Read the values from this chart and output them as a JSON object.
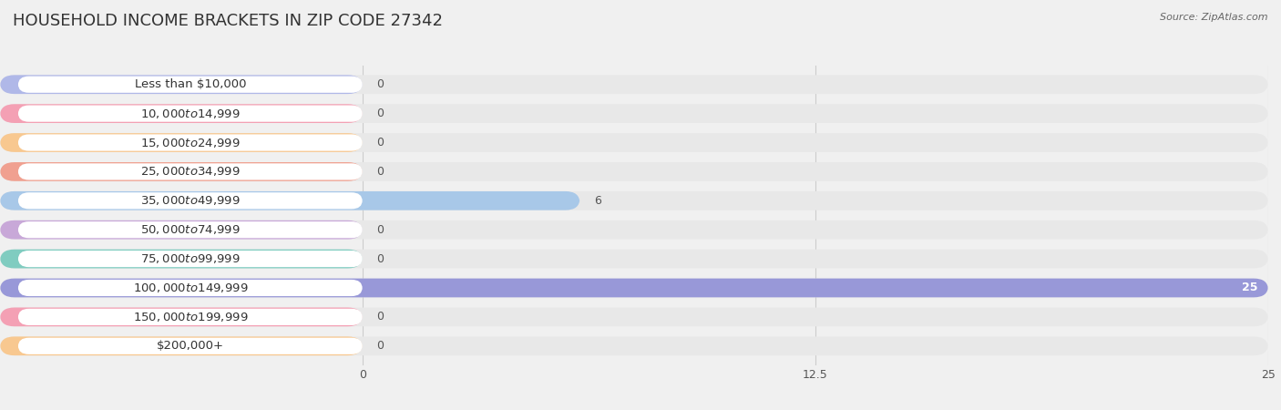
{
  "title": "HOUSEHOLD INCOME BRACKETS IN ZIP CODE 27342",
  "source": "Source: ZipAtlas.com",
  "categories": [
    "Less than $10,000",
    "$10,000 to $14,999",
    "$15,000 to $24,999",
    "$25,000 to $34,999",
    "$35,000 to $49,999",
    "$50,000 to $74,999",
    "$75,000 to $99,999",
    "$100,000 to $149,999",
    "$150,000 to $199,999",
    "$200,000+"
  ],
  "values": [
    0,
    0,
    0,
    0,
    6,
    0,
    0,
    25,
    0,
    0
  ],
  "bar_colors": [
    "#b0b8e8",
    "#f4a0b4",
    "#f8c890",
    "#f0a090",
    "#a8c8e8",
    "#c8a8d8",
    "#80ccc0",
    "#9898d8",
    "#f4a0b4",
    "#f8c890"
  ],
  "label_colors": [
    "#444444",
    "#444444",
    "#444444",
    "#444444",
    "#444444",
    "#444444",
    "#444444",
    "#ffffff",
    "#444444",
    "#444444"
  ],
  "xlim": [
    0,
    25
  ],
  "xticks": [
    0,
    12.5,
    25
  ],
  "background_color": "#f0f0f0",
  "bar_bg_color": "#e8e8e8",
  "label_bg_color": "#ffffff",
  "title_fontsize": 13,
  "label_fontsize": 9.5,
  "value_fontsize": 9
}
